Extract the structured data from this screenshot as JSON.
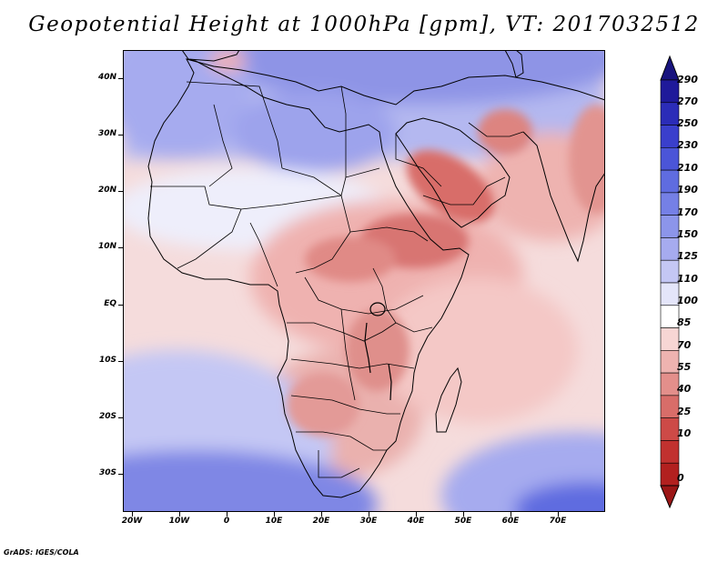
{
  "title": "Geopotential Height at 1000hPa [gpm], VT: 2017032512",
  "footer": "GrADS: IGES/COLA",
  "map": {
    "variable": "Geopotential Height",
    "level": "1000hPa",
    "units": "gpm",
    "valid_time": "2017032512",
    "lat_labels": [
      "40N",
      "30N",
      "20N",
      "10N",
      "EQ",
      "10S",
      "20S",
      "30S"
    ],
    "lon_labels": [
      "20W",
      "10W",
      "0",
      "10E",
      "20E",
      "30E",
      "40E",
      "50E",
      "60E",
      "70E"
    ]
  },
  "colorbar": {
    "labels": [
      "290",
      "270",
      "250",
      "230",
      "210",
      "190",
      "170",
      "150",
      "125",
      "110",
      "100",
      "85",
      "70",
      "55",
      "40",
      "25",
      "10",
      "0"
    ],
    "colors_top_to_bottom": [
      "#1f1a9a",
      "#2b2cb8",
      "#3a3fcc",
      "#4b55d8",
      "#5f6ce0",
      "#7580e6",
      "#8c95ea",
      "#a6abef",
      "#c4c7f4",
      "#e4e5fa",
      "#ffffff",
      "#f7d6d4",
      "#eeb3b0",
      "#e38f8b",
      "#d86d69",
      "#cd4a47",
      "#c1312f",
      "#b2201f"
    ],
    "top_triangle_color": "#18137e",
    "bottom_triangle_color": "#9b1616"
  }
}
